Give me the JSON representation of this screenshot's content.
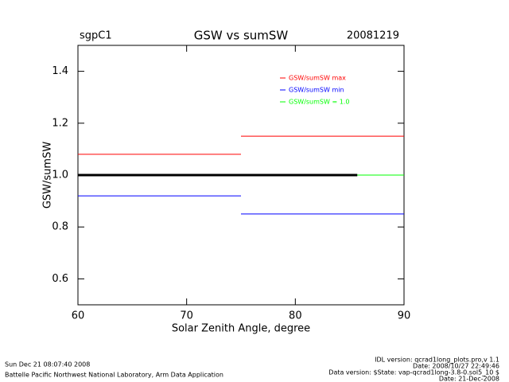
{
  "chart_data": {
    "type": "line",
    "title": "GSW vs sumSW",
    "site": "sgpC1",
    "date": "20081219",
    "x_label": "Solar Zenith Angle, degree",
    "y_label": "GSW/sumSW",
    "xlim": [
      60,
      90
    ],
    "xticks": [
      60,
      70,
      80,
      90
    ],
    "ylim": [
      0.5,
      1.5
    ],
    "yticks": [
      0.6,
      0.8,
      {
        "value": 1,
        "label": "1.0"
      },
      1.2,
      1.4
    ],
    "legend": "upper right",
    "series": [
      {
        "name": "GSW/sumSW max",
        "color": "#ff0000",
        "x": [
          60,
          75,
          null,
          75,
          90
        ],
        "values": [
          1.08,
          1.08,
          null,
          1.15,
          1.15
        ]
      },
      {
        "name": "GSW/sumSW min",
        "color": "#0000ff",
        "x": [
          60,
          75,
          null,
          75,
          90
        ],
        "values": [
          0.92,
          0.92,
          null,
          0.85,
          0.85
        ]
      },
      {
        "name": "GSW/sumSW = 1.0",
        "color": "#00ff00",
        "x": [
          60,
          90
        ],
        "values": [
          1,
          1
        ]
      },
      {
        "color": "#000000",
        "x": [
          60,
          85.7
        ],
        "values": [
          1,
          1
        ]
      }
    ],
    "footer": {
      "run_time": "Sun Dec 21 08:07:40 2008",
      "institution": "Battelle Pacific Northwest National Laboratory, Arm Data Application",
      "idl_version": "IDL version: qcrad1long_plots.pro,v 1.1",
      "idl_date": "Date: 2008/10/27 22:49:46",
      "data_version": "Data version: $State: vap-qcrad1long-3.8-0.sol5_10 $",
      "data_date": "Date: 21-Dec-2008"
    }
  }
}
